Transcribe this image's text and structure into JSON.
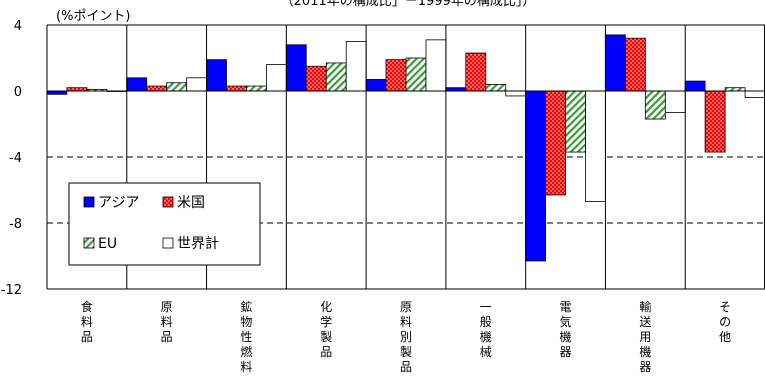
{
  "chart_data": {
    "type": "bar",
    "title": "（2011年の構成比」－1999年の構成比」）",
    "ylabel": "(%ポイント)",
    "ylim": [
      -12,
      4
    ],
    "yticks": [
      4,
      0,
      -4,
      -8,
      -12
    ],
    "grid": "dashed horizontal at -4 and -8",
    "legend_position": "inside-left",
    "categories": [
      "食料品",
      "原料品",
      "鉱物性燃料",
      "化学製品",
      "原料別製品",
      "一般機械",
      "電気機器",
      "輸送用機器",
      "その他"
    ],
    "series": [
      {
        "name": "アジア",
        "color": "#0000ff",
        "pattern": "solid",
        "values": [
          -0.2,
          0.8,
          1.9,
          2.8,
          0.7,
          0.2,
          -10.3,
          3.4,
          0.6
        ]
      },
      {
        "name": "米国",
        "color": "#ff0000",
        "pattern": "dots",
        "values": [
          0.2,
          0.3,
          0.3,
          1.5,
          1.9,
          2.3,
          -6.3,
          3.2,
          -3.7
        ]
      },
      {
        "name": "EU",
        "color": "#3a9a3a",
        "pattern": "diagonal",
        "values": [
          0.1,
          0.5,
          0.3,
          1.7,
          2.0,
          0.4,
          -3.7,
          -1.7,
          0.2
        ]
      },
      {
        "name": "世界計",
        "color": "#ffffff",
        "pattern": "none",
        "values": [
          0.0,
          0.8,
          1.6,
          3.0,
          3.1,
          -0.3,
          -6.7,
          -1.3,
          -0.4
        ]
      }
    ]
  }
}
